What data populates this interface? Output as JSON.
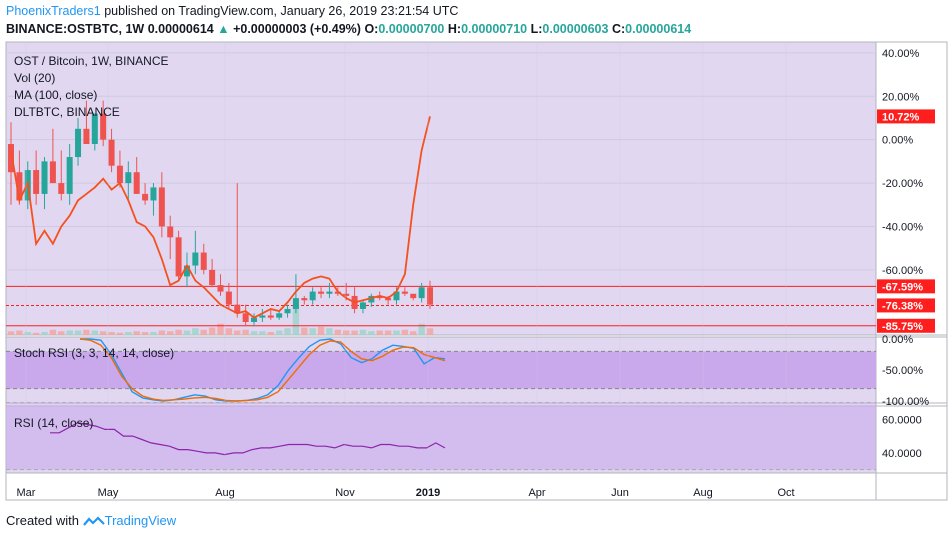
{
  "header": {
    "user": "PhoenixTraders1",
    "published": "published on TradingView.com, January 26, 2019 23:21:54 UTC",
    "symbol": "BINANCE:OSTBTC, 1W",
    "last": "0.00000614",
    "change": "+0.00000003 (+0.49%)",
    "o_label": "O:",
    "o": "0.00000700",
    "h_label": "H:",
    "h": "0.00000710",
    "l_label": "L:",
    "l": "0.00000603",
    "c_label": "C:",
    "c": "0.00000614"
  },
  "legend": {
    "main": "OST / Bitcoin, 1W, BINANCE",
    "vol": "Vol (20)",
    "ma": "MA (100, close)",
    "compare": "DLTBTC, BINANCE",
    "stoch": "Stoch RSI (3, 3, 14, 14, close)",
    "rsi": "RSI (14, close)"
  },
  "colors": {
    "up": "#26a69a",
    "down": "#ef5350",
    "compare_line": "#f4511e",
    "k_line": "#2196f3",
    "d_line": "#ef6c00",
    "rsi_line": "#8e24aa",
    "pane_bg": "#e1d7f1",
    "band_bg": "#c9a8ec",
    "label_red": "#ff1e1e"
  },
  "footer": {
    "created": "Created with",
    "brand": "TradingView"
  },
  "chart_data": [
    {
      "type": "candlestick",
      "title": "OST / Bitcoin, 1W, BINANCE",
      "y_scale": "percent",
      "y_ticks": [
        "40.00%",
        "20.00%",
        "0.00%",
        "-20.00%",
        "-40.00%",
        "-60.00%"
      ],
      "ylim": [
        -90,
        45
      ],
      "x_ticks": [
        "Mar",
        "May",
        "Aug",
        "Nov",
        "2019",
        "Apr",
        "Jun",
        "Aug",
        "Oct"
      ],
      "price_labels": [
        {
          "text": "10.72%",
          "value": 10.72
        },
        {
          "text": "-67.59%",
          "value": -67.59
        },
        {
          "text": "-76.38%",
          "value": -76.38
        },
        {
          "text": "-85.75%",
          "value": -85.75
        }
      ],
      "ohlc_percent": [
        [
          -2,
          8,
          -30,
          -15
        ],
        [
          -15,
          -5,
          -30,
          -28
        ],
        [
          -28,
          -10,
          -32,
          -14
        ],
        [
          -14,
          -5,
          -30,
          -25
        ],
        [
          -25,
          -8,
          -32,
          -10
        ],
        [
          -10,
          5,
          -20,
          -20
        ],
        [
          -20,
          -5,
          -28,
          -25
        ],
        [
          -25,
          -2,
          -30,
          -8
        ],
        [
          -8,
          10,
          -12,
          5
        ],
        [
          5,
          18,
          0,
          -2
        ],
        [
          -2,
          12,
          -5,
          12
        ],
        [
          12,
          18,
          -3,
          0
        ],
        [
          0,
          5,
          -15,
          -12
        ],
        [
          -12,
          -5,
          -22,
          -20
        ],
        [
          -20,
          -10,
          -28,
          -15
        ],
        [
          -15,
          -8,
          -25,
          -25
        ],
        [
          -25,
          -20,
          -30,
          -28
        ],
        [
          -28,
          -20,
          -35,
          -22
        ],
        [
          -22,
          -15,
          -45,
          -40
        ],
        [
          -40,
          -35,
          -55,
          -45
        ],
        [
          -45,
          -42,
          -65,
          -63
        ],
        [
          -63,
          -52,
          -68,
          -58
        ],
        [
          -58,
          -42,
          -62,
          -52
        ],
        [
          -52,
          -48,
          -62,
          -60
        ],
        [
          -60,
          -55,
          -68,
          -67
        ],
        [
          -67,
          -62,
          -72,
          -70
        ],
        [
          -70,
          -66,
          -78,
          -76
        ],
        [
          -76,
          -20,
          -82,
          -80
        ],
        [
          -80,
          -76,
          -86,
          -84
        ],
        [
          -84,
          -80,
          -86,
          -82
        ],
        [
          -82,
          -78,
          -84,
          -81
        ],
        [
          -81,
          -78,
          -83,
          -82
        ],
        [
          -82,
          -79,
          -83,
          -80
        ],
        [
          -80,
          -76,
          -82,
          -78
        ],
        [
          -78,
          -62,
          -80,
          -73
        ],
        [
          -73,
          -72,
          -76,
          -74
        ],
        [
          -74,
          -68,
          -76,
          -70
        ],
        [
          -70,
          -68,
          -73,
          -71
        ],
        [
          -71,
          -66,
          -73,
          -70
        ],
        [
          -70,
          -68,
          -72,
          -71
        ],
        [
          -71,
          -66,
          -74,
          -72
        ],
        [
          -72,
          -68,
          -80,
          -78
        ],
        [
          -78,
          -74,
          -80,
          -75
        ],
        [
          -75,
          -71,
          -77,
          -72
        ],
        [
          -72,
          -70,
          -74,
          -73
        ],
        [
          -73,
          -72,
          -76,
          -74
        ],
        [
          -74,
          -68,
          -76,
          -70
        ],
        [
          -70,
          -68,
          -72,
          -71
        ],
        [
          -71,
          -72,
          -74,
          -73
        ],
        [
          -73,
          -66,
          -75,
          -68
        ],
        [
          -68,
          -65,
          -78,
          -76
        ]
      ],
      "compare_series_percent": [
        -5,
        -28,
        -20,
        -48,
        -42,
        -48,
        -40,
        -35,
        -28,
        -25,
        -22,
        -18,
        -23,
        -20,
        -28,
        -38,
        -40,
        -45,
        -55,
        -67,
        -65,
        -58,
        -65,
        -68,
        -72,
        -76,
        -78,
        -80,
        -79,
        -82,
        -80,
        -78,
        -79,
        -75,
        -70,
        -66,
        -64,
        -63,
        -64,
        -70,
        -73,
        -75,
        -74,
        -73,
        -72,
        -73,
        -70,
        -62,
        -30,
        -5,
        10.72
      ],
      "volume": [
        10,
        12,
        8,
        6,
        8,
        14,
        10,
        12,
        12,
        14,
        12,
        10,
        8,
        6,
        8,
        10,
        8,
        8,
        12,
        10,
        14,
        12,
        18,
        14,
        20,
        30,
        18,
        12,
        14,
        10,
        10,
        8,
        12,
        18,
        80,
        20,
        18,
        22,
        18,
        14,
        12,
        12,
        14,
        10,
        12,
        12,
        12,
        14,
        10,
        30,
        18
      ]
    },
    {
      "type": "line",
      "title": "Stoch RSI (3, 3, 14, 14, close)",
      "y_ticks": [
        "0.00%",
        "-50.00%",
        "-100.00%"
      ],
      "ylim": [
        -100,
        0
      ],
      "series": [
        {
          "name": "K",
          "values": [
            0,
            0,
            -2,
            -25,
            -55,
            -85,
            -95,
            -98,
            -100,
            -98,
            -94,
            -90,
            -92,
            -98,
            -100,
            -100,
            -99,
            -96,
            -90,
            -75,
            -50,
            -30,
            -12,
            -2,
            0,
            -8,
            -30,
            -38,
            -32,
            -18,
            -10,
            -12,
            -15,
            -40,
            -30,
            -32
          ]
        },
        {
          "name": "D",
          "values": [
            0,
            -2,
            -10,
            -30,
            -60,
            -80,
            -92,
            -97,
            -99,
            -98,
            -97,
            -95,
            -94,
            -96,
            -99,
            -100,
            -99,
            -98,
            -94,
            -85,
            -65,
            -45,
            -25,
            -10,
            -3,
            -5,
            -20,
            -32,
            -35,
            -28,
            -18,
            -13,
            -14,
            -25,
            -30,
            -35
          ]
        }
      ],
      "bands": [
        -20,
        -80
      ]
    },
    {
      "type": "line",
      "title": "RSI (14, close)",
      "y_ticks": [
        "60.0000",
        "40.0000"
      ],
      "ylim": [
        28,
        68
      ],
      "series": [
        {
          "name": "RSI",
          "values": [
            52,
            52,
            55,
            58,
            57,
            56,
            54,
            54,
            50,
            50,
            48,
            46,
            45,
            44,
            42,
            42,
            41,
            40,
            40,
            39,
            40,
            40,
            42,
            43,
            43,
            44,
            45,
            45,
            45,
            44,
            44,
            43,
            45,
            44,
            44,
            43,
            45,
            45,
            44,
            44,
            43,
            43,
            46,
            43
          ]
        }
      ]
    }
  ]
}
